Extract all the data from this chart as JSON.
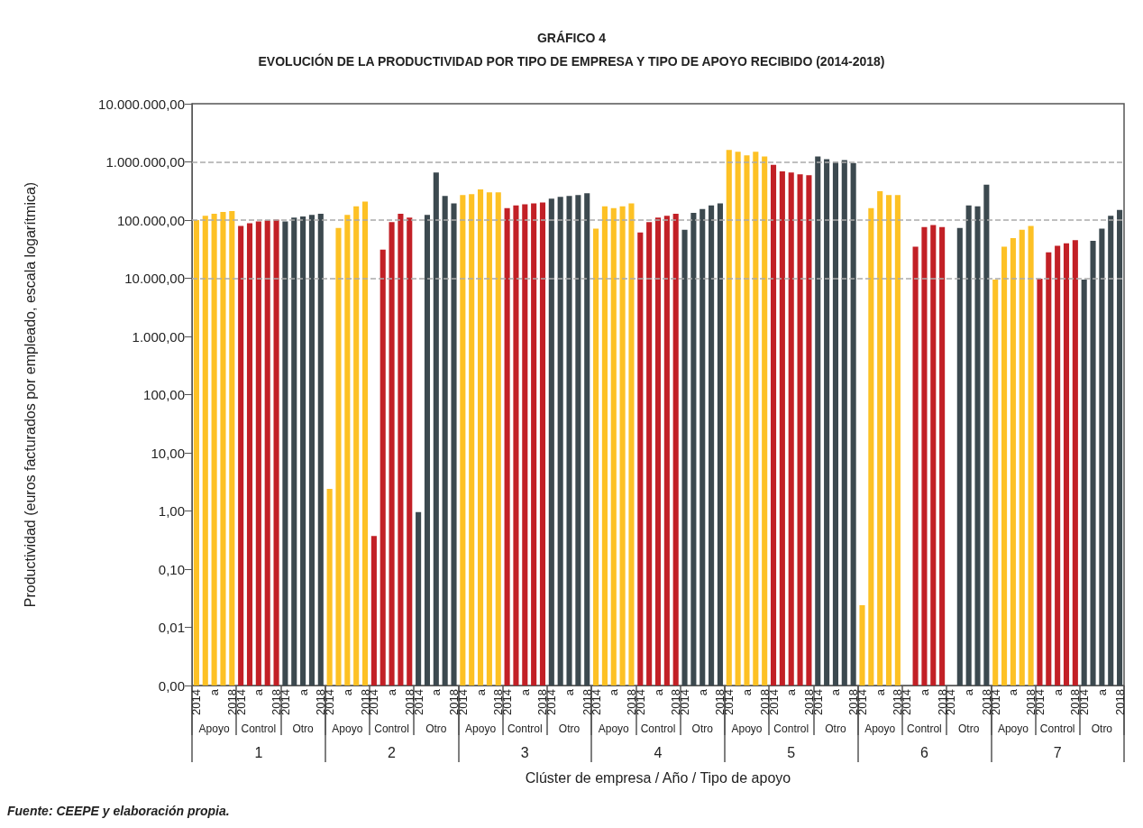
{
  "chart_data": {
    "type": "bar",
    "title": "GRÁFICO 4",
    "subtitle": "EVOLUCIÓN DE LA PRODUCTIVIDAD POR TIPO DE EMPRESA Y TIPO DE APOYO RECIBIDO (2014-2018)",
    "xlabel": "Clúster de empresa / Año / Tipo de apoyo",
    "ylabel": "Productividad (euros facturados por empleado, escala logarítmica)",
    "categories": [
      "2014",
      null,
      "a",
      null,
      "2018",
      "2014",
      null,
      "a",
      null,
      "2018",
      "2014",
      null,
      "a",
      null,
      "2018",
      "2014",
      null,
      "a",
      null,
      "2018",
      "2014",
      null,
      "a",
      null,
      "2018",
      "2014",
      null,
      "a",
      null,
      "2018",
      "2014",
      null,
      "a",
      null,
      "2018",
      "2014",
      null,
      "a",
      null,
      "2018",
      "2014",
      null,
      "a",
      null,
      "2018",
      "2014",
      null,
      "a",
      null,
      "2018",
      "2014",
      null,
      "a",
      null,
      "2018",
      "2014",
      null,
      "a",
      null,
      "2018",
      "2014",
      null,
      "a",
      null,
      "2018",
      "2014",
      null,
      "a",
      null,
      "2018",
      "2014",
      null,
      "a",
      null,
      "2018",
      "2014",
      null,
      "a",
      null,
      "2018",
      "2014",
      null,
      "a",
      null,
      "2018",
      "2014",
      null,
      "a",
      null,
      "2018",
      "2014",
      null,
      "a",
      null,
      "2018",
      "2014",
      null,
      "a",
      null,
      "2018",
      "2014",
      null,
      "a",
      null,
      "2018"
    ],
    "values": [
      100000,
      119000,
      128000,
      138000,
      143000,
      79000,
      88000,
      95000,
      99000,
      102000,
      95000,
      110000,
      115000,
      123000,
      128000,
      2.4,
      73000,
      123000,
      173000,
      208000,
      0.37,
      31000,
      92000,
      128000,
      110000,
      0.96,
      123000,
      660000,
      260000,
      193000,
      270000,
      280000,
      337000,
      300000,
      300000,
      160000,
      179000,
      186000,
      193000,
      200000,
      233000,
      250000,
      260000,
      270000,
      290000,
      71000,
      173000,
      160000,
      173000,
      193000,
      61000,
      92000,
      110000,
      119000,
      128000,
      68000,
      133000,
      155000,
      179000,
      193000,
      1610000,
      1500000,
      1290000,
      1500000,
      1240000,
      890000,
      685000,
      660000,
      610000,
      590000,
      1240000,
      1110000,
      1000000,
      1070000,
      960000,
      0.024,
      160000,
      313000,
      270000,
      270000,
      null,
      35000,
      76000,
      82000,
      76000,
      null,
      73000,
      179000,
      173000,
      407000,
      9500,
      35000,
      49000,
      68000,
      79000,
      9800,
      28000,
      36000,
      40000,
      45000,
      9500,
      44000,
      71000,
      119000,
      149000
    ],
    "colors": [
      "#fdc125",
      "#fdc125",
      "#fdc125",
      "#fdc125",
      "#fdc125",
      "#c22026",
      "#c22026",
      "#c22026",
      "#c22026",
      "#c22026",
      "#3c494f",
      "#3c494f",
      "#3c494f",
      "#3c494f",
      "#3c494f",
      "#fdc125",
      "#fdc125",
      "#fdc125",
      "#fdc125",
      "#fdc125",
      "#c22026",
      "#c22026",
      "#c22026",
      "#c22026",
      "#c22026",
      "#3c494f",
      "#3c494f",
      "#3c494f",
      "#3c494f",
      "#3c494f",
      "#fdc125",
      "#fdc125",
      "#fdc125",
      "#fdc125",
      "#fdc125",
      "#c22026",
      "#c22026",
      "#c22026",
      "#c22026",
      "#c22026",
      "#3c494f",
      "#3c494f",
      "#3c494f",
      "#3c494f",
      "#3c494f",
      "#fdc125",
      "#fdc125",
      "#fdc125",
      "#fdc125",
      "#fdc125",
      "#c22026",
      "#c22026",
      "#c22026",
      "#c22026",
      "#c22026",
      "#3c494f",
      "#3c494f",
      "#3c494f",
      "#3c494f",
      "#3c494f",
      "#fdc125",
      "#fdc125",
      "#fdc125",
      "#fdc125",
      "#fdc125",
      "#c22026",
      "#c22026",
      "#c22026",
      "#c22026",
      "#c22026",
      "#3c494f",
      "#3c494f",
      "#3c494f",
      "#3c494f",
      "#3c494f",
      "#fdc125",
      "#fdc125",
      "#fdc125",
      "#fdc125",
      "#fdc125",
      "#c22026",
      "#c22026",
      "#c22026",
      "#c22026",
      "#c22026",
      "#3c494f",
      "#3c494f",
      "#3c494f",
      "#3c494f",
      "#3c494f",
      "#fdc125",
      "#fdc125",
      "#fdc125",
      "#fdc125",
      "#fdc125",
      "#c22026",
      "#c22026",
      "#c22026",
      "#c22026",
      "#c22026",
      "#3c494f",
      "#3c494f",
      "#3c494f",
      "#3c494f",
      "#3c494f"
    ],
    "log": "y",
    "ylim": [
      0.001,
      10000000
    ],
    "yticks": [
      {
        "value": 0.001,
        "label": "0,00"
      },
      {
        "value": 0.01,
        "label": "0,01"
      },
      {
        "value": 0.1,
        "label": "0,10"
      },
      {
        "value": 1,
        "label": "1,00"
      },
      {
        "value": 10,
        "label": "10,00"
      },
      {
        "value": 100,
        "label": "100,00"
      },
      {
        "value": 1000,
        "label": "1.000,00"
      },
      {
        "value": 10000,
        "label": "10.000,00"
      },
      {
        "value": 100000,
        "label": "100.000,00"
      },
      {
        "value": 1000000,
        "label": "1.000.000,00"
      },
      {
        "value": 10000000,
        "label": "10.000.000,00"
      }
    ],
    "ref_lines": [
      {
        "axis": "y",
        "value": 10000,
        "label": null,
        "color": "#aaaaaa",
        "line_style": "dashed"
      },
      {
        "axis": "y",
        "value": 100000,
        "label": null,
        "color": "#aaaaaa",
        "line_style": "dashed"
      },
      {
        "axis": "y",
        "value": 1000000,
        "label": null,
        "color": "#aaaaaa",
        "line_style": "dashed"
      }
    ],
    "annotations": [
      "Apoyo",
      "Control",
      "Otro",
      "Apoyo",
      "Control",
      "Otro",
      "Apoyo",
      "Control",
      "Otro",
      "Apoyo",
      "Control",
      "Otro",
      "Apoyo",
      "Control",
      "Otro",
      "Apoyo",
      "Control",
      "Otro",
      "Apoyo",
      "Control",
      "Otro",
      "1",
      "2",
      "3",
      "4",
      "5",
      "6",
      "7",
      "Fuente: CEEPE y elaboración propia."
    ]
  }
}
